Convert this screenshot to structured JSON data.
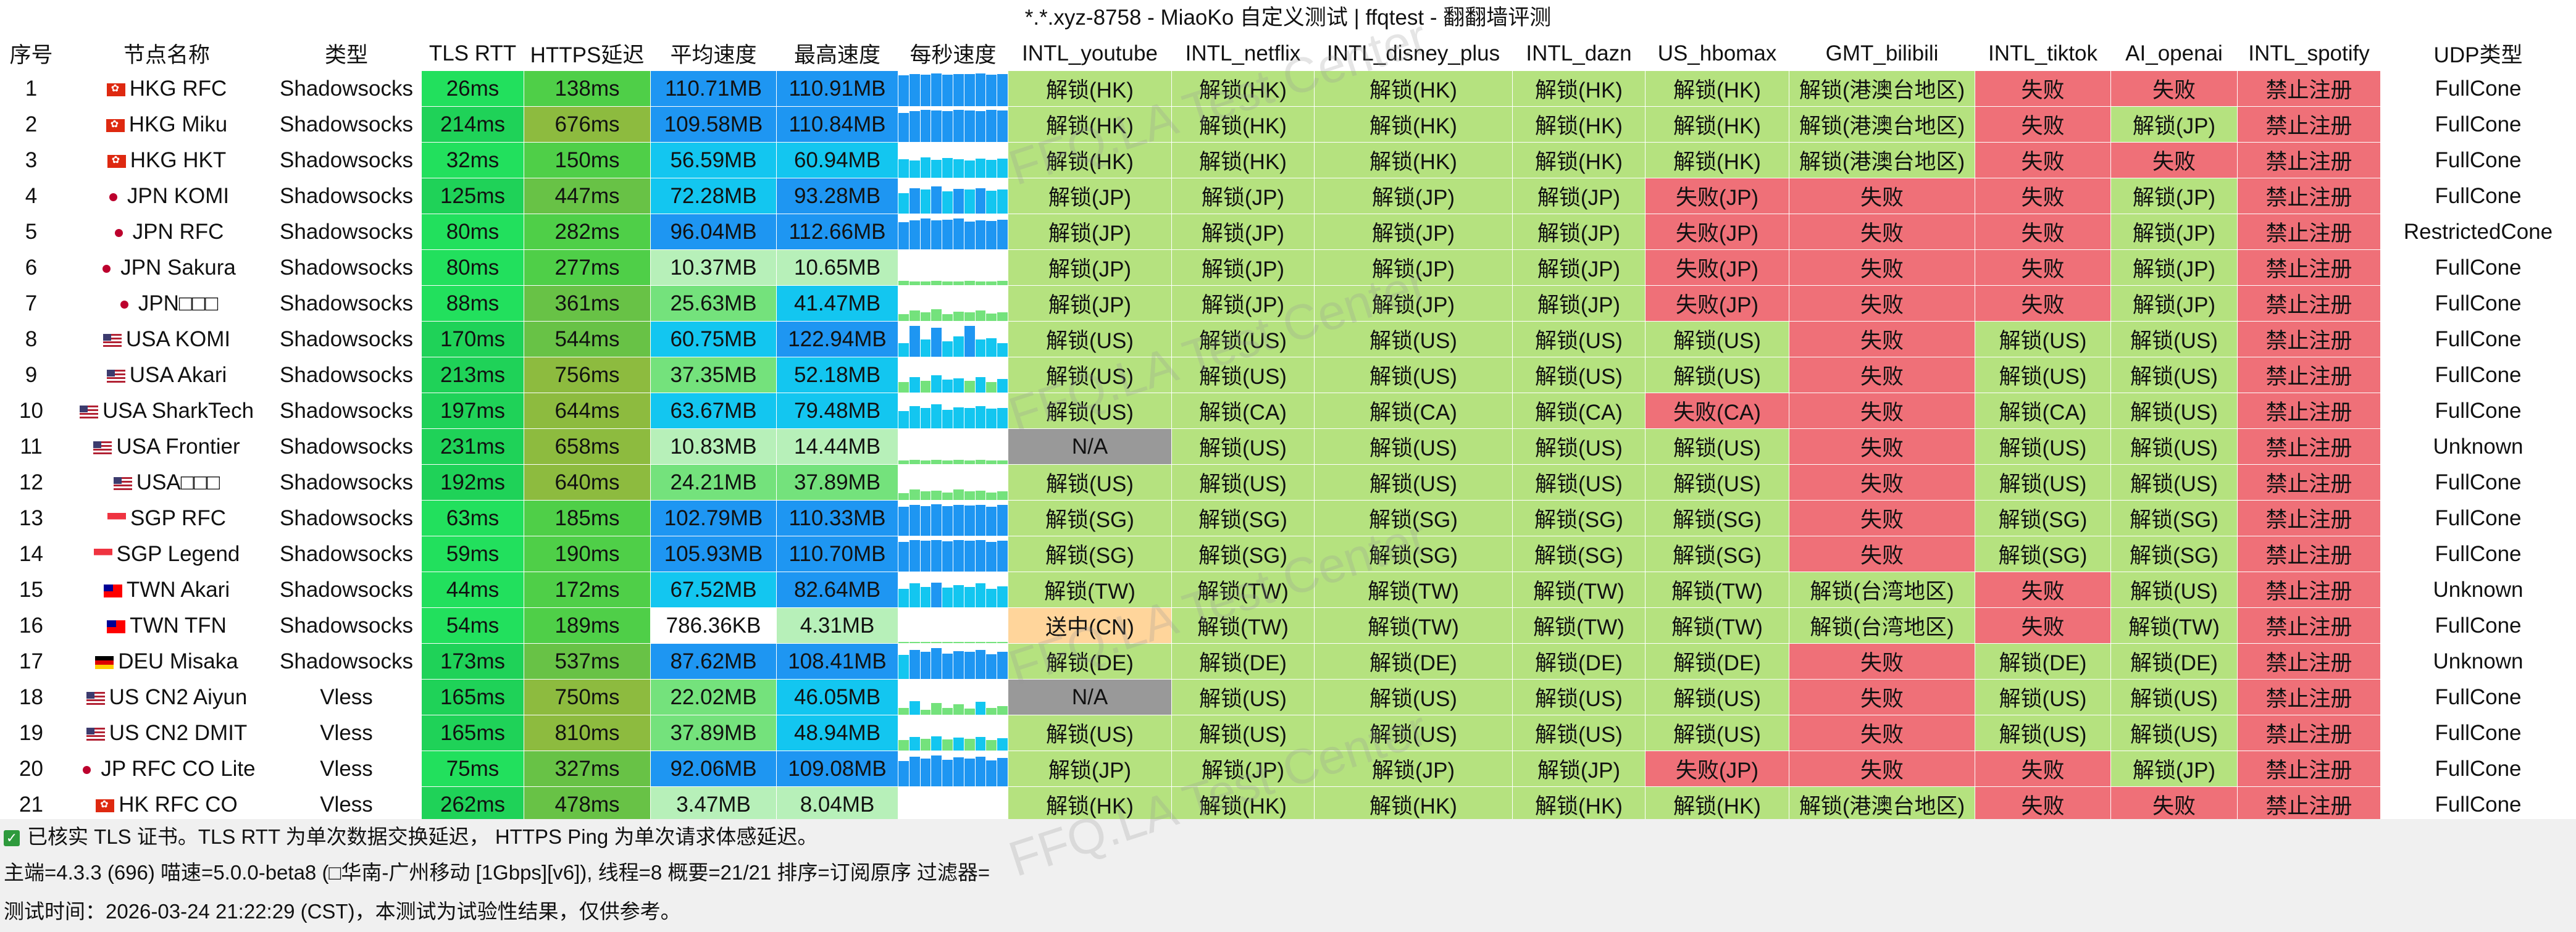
{
  "window_title": "*.*.xyz-8758 - MiaoKo 自定义测试 | ffqtest - 翻翻墙评测",
  "watermark": "FFQ.LA Test Center",
  "columns": [
    "序号",
    "节点名称",
    "类型",
    "TLS RTT",
    "HTTPS延迟",
    "平均速度",
    "最高速度",
    "每秒速度",
    "INTL_youtube",
    "INTL_netflix",
    "INTL_disney_plus",
    "INTL_dazn",
    "US_hbomax",
    "GMT_bilibili",
    "INTL_tiktok",
    "AI_openai",
    "INTL_spotify",
    "UDP类型"
  ],
  "colors": {
    "unlock": "#b5e27f",
    "fail": "#ef7078",
    "na": "#999999",
    "pending": "#ffd59b",
    "tls_low": "#22e05d",
    "tls_high": "#1fd258",
    "https_green": "#4fcf48",
    "https_olive": "#8dbb3f",
    "https_mid": "#68c246",
    "spd_blue": "#1e96f2",
    "spd_cyan": "#13c6f0",
    "spd_low": "#74e27c",
    "spd_vlow": "#b7f0b9",
    "spd_white": "#ffffff"
  },
  "rows": [
    {
      "idx": "1",
      "flag": "hk",
      "name": "HKG RFC",
      "type": "Shadowsocks",
      "tls": "26ms",
      "https": "138ms",
      "avg": "110.71MB",
      "max": "110.91MB",
      "spark": [
        0.9,
        0.95,
        0.92,
        0.96,
        0.93,
        0.95,
        0.94,
        0.96,
        0.92,
        0.95
      ],
      "yt": "解锁(HK)",
      "nf": "解锁(HK)",
      "dp": "解锁(HK)",
      "dz": "解锁(HK)",
      "hbo": "解锁(HK)",
      "bili": "解锁(港澳台地区)",
      "tk": "失败",
      "ai": "失败",
      "sp": "禁止注册",
      "udp": "FullCone"
    },
    {
      "idx": "2",
      "flag": "hk",
      "name": "HKG Miku",
      "type": "Shadowsocks",
      "tls": "214ms",
      "https": "676ms",
      "avg": "109.58MB",
      "max": "110.84MB",
      "spark": [
        0.85,
        0.9,
        0.95,
        0.92,
        0.9,
        0.95,
        0.93,
        0.9,
        0.94,
        0.92
      ],
      "yt": "解锁(HK)",
      "nf": "解锁(HK)",
      "dp": "解锁(HK)",
      "dz": "解锁(HK)",
      "hbo": "解锁(HK)",
      "bili": "解锁(港澳台地区)",
      "tk": "失败",
      "ai": "解锁(JP)",
      "sp": "禁止注册",
      "udp": "FullCone"
    },
    {
      "idx": "3",
      "flag": "hk",
      "name": "HKG HKT",
      "type": "Shadowsocks",
      "tls": "32ms",
      "https": "150ms",
      "avg": "56.59MB",
      "max": "60.94MB",
      "spark": [
        0.55,
        0.5,
        0.6,
        0.52,
        0.58,
        0.55,
        0.5,
        0.57,
        0.53,
        0.56
      ],
      "yt": "解锁(HK)",
      "nf": "解锁(HK)",
      "dp": "解锁(HK)",
      "dz": "解锁(HK)",
      "hbo": "解锁(HK)",
      "bili": "解锁(港澳台地区)",
      "tk": "失败",
      "ai": "失败",
      "sp": "禁止注册",
      "udp": "FullCone"
    },
    {
      "idx": "4",
      "flag": "jp",
      "name": "JPN KOMI",
      "type": "Shadowsocks",
      "tls": "125ms",
      "https": "447ms",
      "avg": "72.28MB",
      "max": "93.28MB",
      "spark": [
        0.6,
        0.75,
        0.7,
        0.8,
        0.65,
        0.72,
        0.7,
        0.75,
        0.68,
        0.7
      ],
      "yt": "解锁(JP)",
      "nf": "解锁(JP)",
      "dp": "解锁(JP)",
      "dz": "解锁(JP)",
      "hbo": "失败(JP)",
      "bili": "失败",
      "tk": "失败",
      "ai": "解锁(JP)",
      "sp": "禁止注册",
      "udp": "FullCone"
    },
    {
      "idx": "5",
      "flag": "jp",
      "name": "JPN RFC",
      "type": "Shadowsocks",
      "tls": "80ms",
      "https": "282ms",
      "avg": "96.04MB",
      "max": "112.66MB",
      "spark": [
        0.8,
        0.85,
        0.9,
        0.85,
        0.88,
        0.9,
        0.82,
        0.86,
        0.84,
        0.88
      ],
      "yt": "解锁(JP)",
      "nf": "解锁(JP)",
      "dp": "解锁(JP)",
      "dz": "解锁(JP)",
      "hbo": "失败(JP)",
      "bili": "失败",
      "tk": "失败",
      "ai": "解锁(JP)",
      "sp": "禁止注册",
      "udp": "RestrictedCone"
    },
    {
      "idx": "6",
      "flag": "jp",
      "name": "JPN Sakura",
      "type": "Shadowsocks",
      "tls": "80ms",
      "https": "277ms",
      "avg": "10.37MB",
      "max": "10.65MB",
      "spark": [
        0.12,
        0.1,
        0.11,
        0.12,
        0.1,
        0.11,
        0.12,
        0.1,
        0.11,
        0.12
      ],
      "yt": "解锁(JP)",
      "nf": "解锁(JP)",
      "dp": "解锁(JP)",
      "dz": "解锁(JP)",
      "hbo": "失败(JP)",
      "bili": "失败",
      "tk": "失败",
      "ai": "解锁(JP)",
      "sp": "禁止注册",
      "udp": "FullCone"
    },
    {
      "idx": "7",
      "flag": "jp",
      "name": "JPN□□□",
      "type": "Shadowsocks",
      "tls": "88ms",
      "https": "361ms",
      "avg": "25.63MB",
      "max": "41.47MB",
      "spark": [
        0.2,
        0.3,
        0.25,
        0.35,
        0.2,
        0.28,
        0.25,
        0.3,
        0.22,
        0.26
      ],
      "yt": "解锁(JP)",
      "nf": "解锁(JP)",
      "dp": "解锁(JP)",
      "dz": "解锁(JP)",
      "hbo": "失败(JP)",
      "bili": "失败",
      "tk": "失败",
      "ai": "解锁(JP)",
      "sp": "禁止注册",
      "udp": "FullCone"
    },
    {
      "idx": "8",
      "flag": "us",
      "name": "USA KOMI",
      "type": "Shadowsocks",
      "tls": "170ms",
      "https": "544ms",
      "avg": "60.75MB",
      "max": "122.94MB",
      "spark": [
        0.4,
        0.9,
        0.5,
        0.85,
        0.45,
        0.6,
        0.9,
        0.5,
        0.55,
        0.4
      ],
      "yt": "解锁(US)",
      "nf": "解锁(US)",
      "dp": "解锁(US)",
      "dz": "解锁(US)",
      "hbo": "解锁(US)",
      "bili": "失败",
      "tk": "解锁(US)",
      "ai": "解锁(US)",
      "sp": "禁止注册",
      "udp": "FullCone"
    },
    {
      "idx": "9",
      "flag": "us",
      "name": "USA Akari",
      "type": "Shadowsocks",
      "tls": "213ms",
      "https": "756ms",
      "avg": "37.35MB",
      "max": "52.18MB",
      "spark": [
        0.3,
        0.45,
        0.35,
        0.5,
        0.38,
        0.42,
        0.35,
        0.45,
        0.3,
        0.4
      ],
      "yt": "解锁(US)",
      "nf": "解锁(US)",
      "dp": "解锁(US)",
      "dz": "解锁(US)",
      "hbo": "解锁(US)",
      "bili": "失败",
      "tk": "解锁(US)",
      "ai": "解锁(US)",
      "sp": "禁止注册",
      "udp": "FullCone"
    },
    {
      "idx": "10",
      "flag": "us",
      "name": "USA SharkTech",
      "type": "Shadowsocks",
      "tls": "197ms",
      "https": "644ms",
      "avg": "63.67MB",
      "max": "79.48MB",
      "spark": [
        0.5,
        0.65,
        0.6,
        0.7,
        0.55,
        0.62,
        0.6,
        0.65,
        0.58,
        0.6
      ],
      "yt": "解锁(US)",
      "nf": "解锁(CA)",
      "dp": "解锁(CA)",
      "dz": "解锁(CA)",
      "hbo": "失败(CA)",
      "bili": "失败",
      "tk": "解锁(CA)",
      "ai": "解锁(US)",
      "sp": "禁止注册",
      "udp": "FullCone"
    },
    {
      "idx": "11",
      "flag": "us",
      "name": "USA Frontier",
      "type": "Shadowsocks",
      "tls": "231ms",
      "https": "658ms",
      "avg": "10.83MB",
      "max": "14.44MB",
      "spark": [
        0.1,
        0.12,
        0.11,
        0.13,
        0.1,
        0.12,
        0.11,
        0.12,
        0.1,
        0.11
      ],
      "yt": "N/A",
      "nf": "解锁(US)",
      "dp": "解锁(US)",
      "dz": "解锁(US)",
      "hbo": "解锁(US)",
      "bili": "失败",
      "tk": "解锁(US)",
      "ai": "解锁(US)",
      "sp": "禁止注册",
      "udp": "Unknown"
    },
    {
      "idx": "12",
      "flag": "us",
      "name": "USA□□□",
      "type": "Shadowsocks",
      "tls": "192ms",
      "https": "640ms",
      "avg": "24.21MB",
      "max": "37.89MB",
      "spark": [
        0.2,
        0.3,
        0.25,
        0.28,
        0.22,
        0.3,
        0.25,
        0.27,
        0.22,
        0.25
      ],
      "yt": "解锁(US)",
      "nf": "解锁(US)",
      "dp": "解锁(US)",
      "dz": "解锁(US)",
      "hbo": "解锁(US)",
      "bili": "失败",
      "tk": "解锁(US)",
      "ai": "解锁(US)",
      "sp": "禁止注册",
      "udp": "FullCone"
    },
    {
      "idx": "13",
      "flag": "sg",
      "name": "SGP RFC",
      "type": "Shadowsocks",
      "tls": "63ms",
      "https": "185ms",
      "avg": "102.79MB",
      "max": "110.33MB",
      "spark": [
        0.85,
        0.9,
        0.88,
        0.92,
        0.87,
        0.9,
        0.89,
        0.91,
        0.86,
        0.9
      ],
      "yt": "解锁(SG)",
      "nf": "解锁(SG)",
      "dp": "解锁(SG)",
      "dz": "解锁(SG)",
      "hbo": "解锁(SG)",
      "bili": "失败",
      "tk": "解锁(SG)",
      "ai": "解锁(SG)",
      "sp": "禁止注册",
      "udp": "FullCone"
    },
    {
      "idx": "14",
      "flag": "sg",
      "name": "SGP Legend",
      "type": "Shadowsocks",
      "tls": "59ms",
      "https": "190ms",
      "avg": "105.93MB",
      "max": "110.70MB",
      "spark": [
        0.88,
        0.92,
        0.9,
        0.93,
        0.89,
        0.92,
        0.9,
        0.93,
        0.88,
        0.91
      ],
      "yt": "解锁(SG)",
      "nf": "解锁(SG)",
      "dp": "解锁(SG)",
      "dz": "解锁(SG)",
      "hbo": "解锁(SG)",
      "bili": "失败",
      "tk": "解锁(SG)",
      "ai": "解锁(SG)",
      "sp": "禁止注册",
      "udp": "FullCone"
    },
    {
      "idx": "15",
      "flag": "tw",
      "name": "TWN Akari",
      "type": "Shadowsocks",
      "tls": "44ms",
      "https": "172ms",
      "avg": "67.52MB",
      "max": "82.64MB",
      "spark": [
        0.55,
        0.7,
        0.6,
        0.72,
        0.58,
        0.65,
        0.6,
        0.7,
        0.55,
        0.62
      ],
      "yt": "解锁(TW)",
      "nf": "解锁(TW)",
      "dp": "解锁(TW)",
      "dz": "解锁(TW)",
      "hbo": "解锁(TW)",
      "bili": "解锁(台湾地区)",
      "tk": "失败",
      "ai": "解锁(US)",
      "sp": "禁止注册",
      "udp": "Unknown"
    },
    {
      "idx": "16",
      "flag": "tw",
      "name": "TWN TFN",
      "type": "Shadowsocks",
      "tls": "54ms",
      "https": "189ms",
      "avg": "786.36KB",
      "max": "4.31MB",
      "spark": [
        0.02,
        0.04,
        0.02,
        0.03,
        0.02,
        0.04,
        0.02,
        0.03,
        0.02,
        0.03
      ],
      "yt": "送中(CN)",
      "nf": "解锁(TW)",
      "dp": "解锁(TW)",
      "dz": "解锁(TW)",
      "hbo": "解锁(TW)",
      "bili": "解锁(台湾地区)",
      "tk": "失败",
      "ai": "解锁(TW)",
      "sp": "禁止注册",
      "udp": "FullCone"
    },
    {
      "idx": "17",
      "flag": "de",
      "name": "DEU Misaka",
      "type": "Shadowsocks",
      "tls": "173ms",
      "https": "537ms",
      "avg": "87.62MB",
      "max": "108.41MB",
      "spark": [
        0.7,
        0.85,
        0.8,
        0.9,
        0.75,
        0.82,
        0.8,
        0.85,
        0.72,
        0.8
      ],
      "yt": "解锁(DE)",
      "nf": "解锁(DE)",
      "dp": "解锁(DE)",
      "dz": "解锁(DE)",
      "hbo": "解锁(DE)",
      "bili": "失败",
      "tk": "解锁(DE)",
      "ai": "解锁(DE)",
      "sp": "禁止注册",
      "udp": "Unknown"
    },
    {
      "idx": "18",
      "flag": "us",
      "name": "US CN2 Aiyun",
      "type": "Vless",
      "tls": "165ms",
      "https": "750ms",
      "avg": "22.02MB",
      "max": "46.05MB",
      "spark": [
        0.2,
        0.4,
        0.15,
        0.35,
        0.2,
        0.3,
        0.18,
        0.38,
        0.2,
        0.25
      ],
      "yt": "N/A",
      "nf": "解锁(US)",
      "dp": "解锁(US)",
      "dz": "解锁(US)",
      "hbo": "解锁(US)",
      "bili": "失败",
      "tk": "解锁(US)",
      "ai": "解锁(US)",
      "sp": "禁止注册",
      "udp": "FullCone"
    },
    {
      "idx": "19",
      "flag": "us",
      "name": "US CN2 DMIT",
      "type": "Vless",
      "tls": "165ms",
      "https": "810ms",
      "avg": "37.89MB",
      "max": "48.94MB",
      "spark": [
        0.3,
        0.4,
        0.35,
        0.42,
        0.32,
        0.38,
        0.35,
        0.4,
        0.3,
        0.36
      ],
      "yt": "解锁(US)",
      "nf": "解锁(US)",
      "dp": "解锁(US)",
      "dz": "解锁(US)",
      "hbo": "解锁(US)",
      "bili": "失败",
      "tk": "解锁(US)",
      "ai": "解锁(US)",
      "sp": "禁止注册",
      "udp": "FullCone"
    },
    {
      "idx": "20",
      "flag": "jp",
      "name": "JP RFC CO Lite",
      "type": "Vless",
      "tls": "75ms",
      "https": "327ms",
      "avg": "92.06MB",
      "max": "109.08MB",
      "spark": [
        0.75,
        0.88,
        0.82,
        0.9,
        0.78,
        0.85,
        0.82,
        0.88,
        0.76,
        0.84
      ],
      "yt": "解锁(JP)",
      "nf": "解锁(JP)",
      "dp": "解锁(JP)",
      "dz": "解锁(JP)",
      "hbo": "失败(JP)",
      "bili": "失败",
      "tk": "失败",
      "ai": "解锁(JP)",
      "sp": "禁止注册",
      "udp": "FullCone"
    },
    {
      "idx": "21",
      "flag": "hk",
      "name": "HK RFC CO",
      "type": "Vless",
      "tls": "262ms",
      "https": "478ms",
      "avg": "3.47MB",
      "max": "8.04MB",
      "spark": [
        0.03,
        0.06,
        0.04,
        0.07,
        0.03,
        0.05,
        0.04,
        0.06,
        0.03,
        0.05
      ],
      "yt": "解锁(HK)",
      "nf": "解锁(HK)",
      "dp": "解锁(HK)",
      "dz": "解锁(HK)",
      "hbo": "解锁(HK)",
      "bili": "解锁(港澳台地区)",
      "tk": "失败",
      "ai": "失败",
      "sp": "禁止注册",
      "udp": "FullCone"
    }
  ],
  "footer": {
    "line1": "已核实 TLS 证书。TLS RTT 为单次数据交换延迟， HTTPS Ping 为单次请求体感延迟。",
    "line2": "主端=4.3.3 (696) 喵速=5.0.0-beta8 (□华南-广州移动 [1Gbps][v6]), 线程=8 概要=21/21 排序=订阅原序 过滤器=",
    "line3": "测试时间：2026-03-24 21:22:29 (CST)，本测试为试验性结果，仅供参考。"
  }
}
